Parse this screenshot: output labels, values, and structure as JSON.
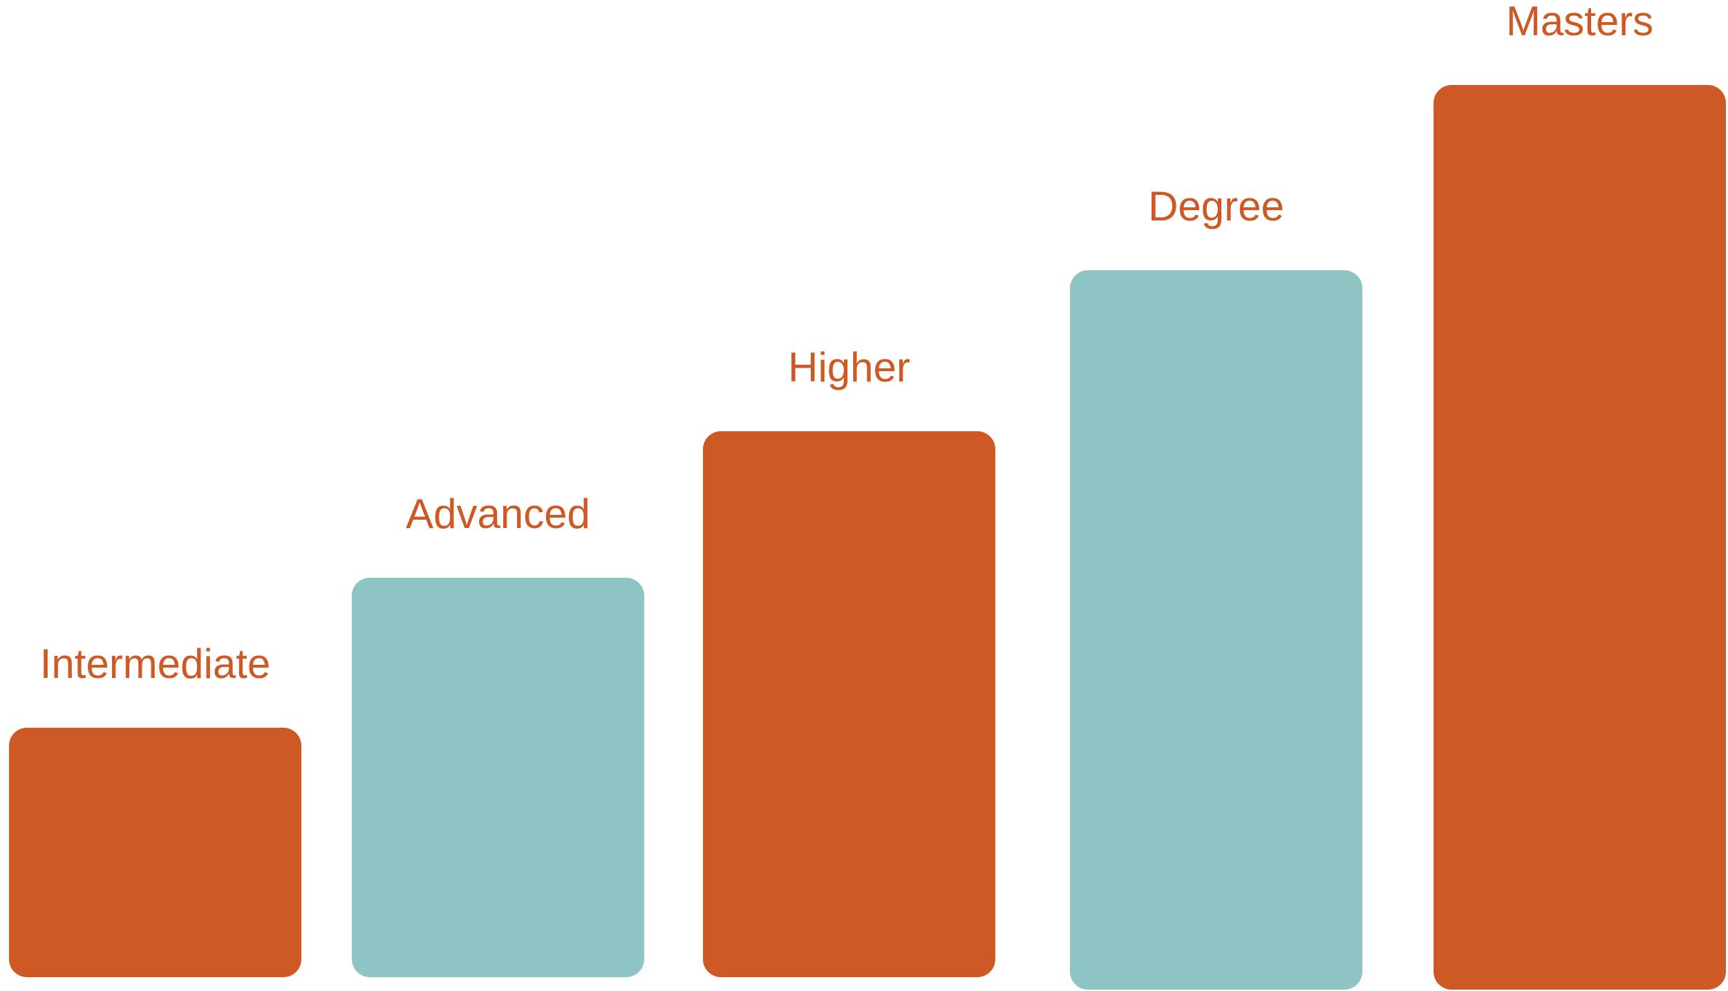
{
  "colors": {
    "orange": "#CD5A24",
    "teal": "#8FC4C5",
    "label": "#CD5A24",
    "background": "#FFFFFF"
  },
  "steps": [
    {
      "label": "Intermediate",
      "level": 1,
      "color": "orange"
    },
    {
      "label": "Advanced",
      "level": 2,
      "color": "teal"
    },
    {
      "label": "Higher",
      "level": 3,
      "color": "orange"
    },
    {
      "label": "Degree",
      "level": 4,
      "color": "teal"
    },
    {
      "label": "Masters",
      "level": 5,
      "color": "orange"
    }
  ]
}
